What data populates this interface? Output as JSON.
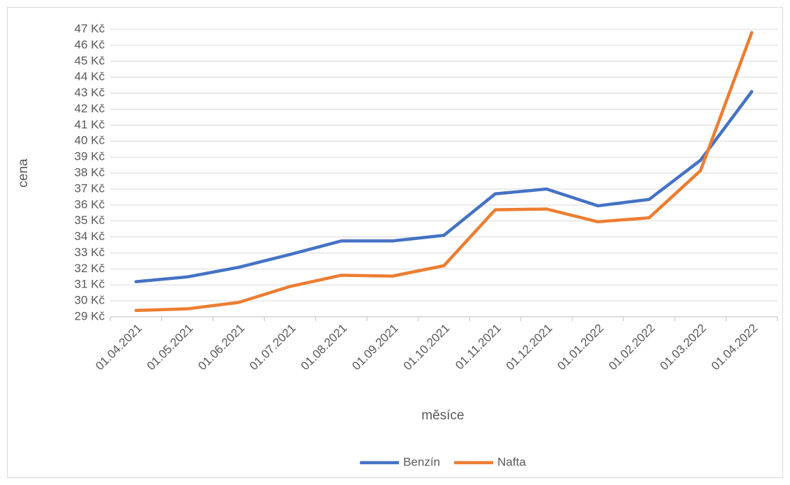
{
  "chart_data": {
    "type": "line",
    "x_label": "měsíce",
    "y_label": "cena",
    "categories": [
      "01.04.2021",
      "01.05.2021",
      "01.06.2021",
      "01.07.2021",
      "01.08.2021",
      "01.09.2021",
      "01.10.2021",
      "01.11.2021",
      "01.12.2021",
      "01.01.2022",
      "01.02.2022",
      "01.03.2022",
      "01.04.2022"
    ],
    "series": [
      {
        "name": "Benzín",
        "color": "#4472c4",
        "values": [
          31.2,
          31.5,
          32.1,
          32.9,
          33.75,
          33.75,
          34.1,
          36.7,
          37.0,
          35.95,
          36.35,
          38.8,
          43.1
        ]
      },
      {
        "name": "Nafta",
        "color": "#ed7d31",
        "values": [
          29.4,
          29.5,
          29.9,
          30.9,
          31.6,
          31.55,
          32.2,
          35.7,
          35.75,
          34.95,
          35.2,
          38.15,
          46.8
        ]
      }
    ],
    "ylim": [
      29,
      47
    ],
    "yticks": [
      {
        "value": 29,
        "label": "29 Kč"
      },
      {
        "value": 30,
        "label": "30 Kč"
      },
      {
        "value": 31,
        "label": "31 Kč"
      },
      {
        "value": 32,
        "label": "32 Kč"
      },
      {
        "value": 33,
        "label": "33 Kč"
      },
      {
        "value": 34,
        "label": "34 Kč"
      },
      {
        "value": 35,
        "label": "35 Kč"
      },
      {
        "value": 36,
        "label": "36 Kč"
      },
      {
        "value": 37,
        "label": "37 Kč"
      },
      {
        "value": 38,
        "label": "38 Kč"
      },
      {
        "value": 39,
        "label": "39 Kč"
      },
      {
        "value": 40,
        "label": "40 Kč"
      },
      {
        "value": 41,
        "label": "41 Kč"
      },
      {
        "value": 42,
        "label": "42 Kč"
      },
      {
        "value": 43,
        "label": "43 Kč"
      },
      {
        "value": 44,
        "label": "44 Kč"
      },
      {
        "value": 45,
        "label": "45 Kč"
      },
      {
        "value": 46,
        "label": "46 Kč"
      },
      {
        "value": 47,
        "label": "47 Kč"
      }
    ],
    "grid": true,
    "legend": "bottom"
  }
}
